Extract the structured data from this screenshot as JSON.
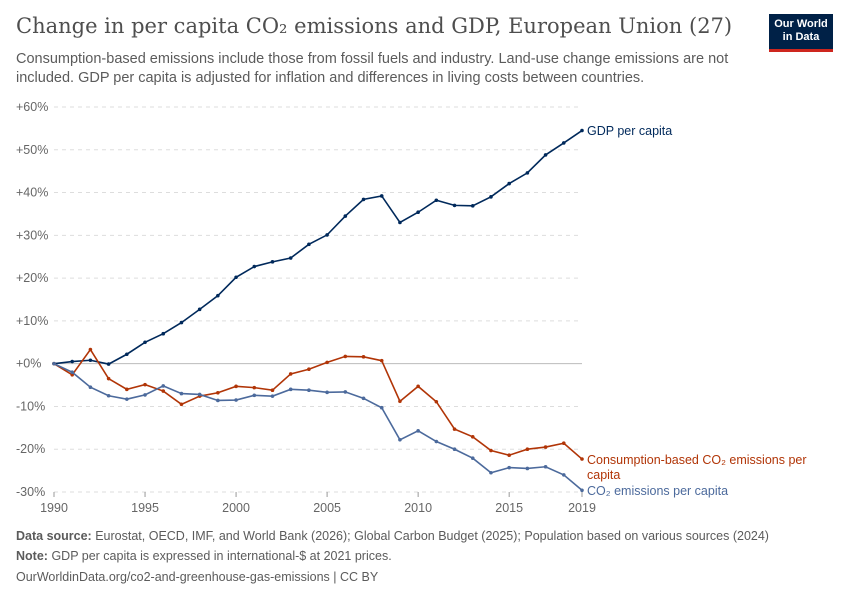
{
  "header": {
    "title": "Change in per capita CO₂ emissions and GDP, European Union (27)",
    "subtitle": "Consumption-based emissions include those from fossil fuels and industry. Land-use change emissions are not included. GDP per capita is adjusted for inflation and differences in living costs between countries.",
    "logo": "Our World in Data"
  },
  "footer": {
    "source_label": "Data source:",
    "source": "Eurostat, OECD, IMF, and World Bank (2026); Global Carbon Budget (2025); Population based on various sources (2024)",
    "note_label": "Note:",
    "note": "GDP per capita is expressed in international-$ at 2021 prices.",
    "url": "OurWorldinData.org/co2-and-greenhouse-gas-emissions | CC BY"
  },
  "chart_data": {
    "type": "line",
    "title": "Change in per capita CO₂ emissions and GDP, European Union (27)",
    "ylim": [
      -30,
      60
    ],
    "yticks": [
      "+60%",
      "+50%",
      "+40%",
      "+30%",
      "+20%",
      "+10%",
      "+0%",
      "-10%",
      "-20%",
      "-30%"
    ],
    "xticks": [
      "1990",
      "1995",
      "2000",
      "2005",
      "2010",
      "2015",
      "2019"
    ],
    "grid": "horizontal dashed",
    "x": [
      1990,
      1991,
      1992,
      1993,
      1994,
      1995,
      1996,
      1997,
      1998,
      1999,
      2000,
      2001,
      2002,
      2003,
      2004,
      2005,
      2006,
      2007,
      2008,
      2009,
      2010,
      2011,
      2012,
      2013,
      2014,
      2015,
      2016,
      2017,
      2018,
      2019
    ],
    "series": [
      {
        "name": "GDP per capita",
        "color": "#00295b",
        "values": [
          0,
          0.5,
          0.8,
          -0.1,
          2.2,
          5.0,
          7.0,
          9.6,
          12.7,
          15.9,
          20.2,
          22.7,
          23.8,
          24.7,
          27.9,
          30.1,
          34.5,
          38.4,
          39.2,
          33.0,
          35.4,
          38.2,
          37.0,
          36.9,
          39.0,
          42.1,
          44.6,
          48.8,
          51.6,
          54.5
        ]
      },
      {
        "name": "Consumption-based CO₂ emissions per capita",
        "color": "#b13507",
        "values": [
          0,
          -2.6,
          3.3,
          -3.5,
          -6.0,
          -4.9,
          -6.4,
          -9.5,
          -7.6,
          -6.8,
          -5.3,
          -5.6,
          -6.2,
          -2.4,
          -1.3,
          0.3,
          1.7,
          1.6,
          0.7,
          -8.8,
          -5.3,
          -8.9,
          -15.3,
          -17.1,
          -20.3,
          -21.4,
          -20.0,
          -19.5,
          -18.6,
          -22.3
        ]
      },
      {
        "name": "CO₂ emissions per capita",
        "color": "#4c6a9c",
        "values": [
          0,
          -2.0,
          -5.5,
          -7.5,
          -8.3,
          -7.3,
          -5.2,
          -7.0,
          -7.2,
          -8.6,
          -8.5,
          -7.4,
          -7.6,
          -6.0,
          -6.2,
          -6.7,
          -6.6,
          -8.1,
          -10.3,
          -17.8,
          -15.7,
          -18.2,
          -20.0,
          -22.1,
          -25.5,
          -24.3,
          -24.5,
          -24.1,
          -26.0,
          -29.6
        ]
      }
    ]
  }
}
